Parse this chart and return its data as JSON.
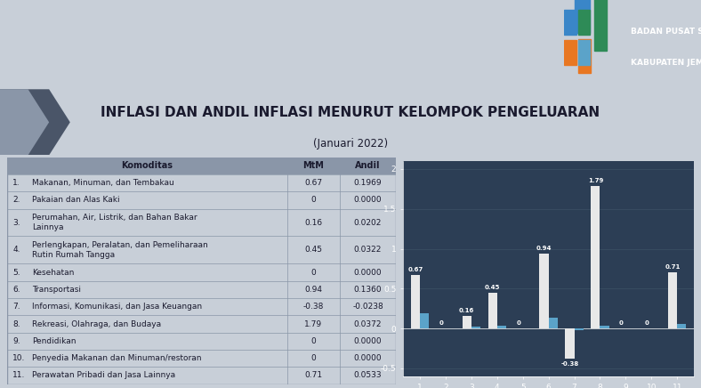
{
  "title": "INFLASI DAN ANDIL INFLASI MENURUT KELOMPOK PENGELUARAN",
  "subtitle": "(Januari 2022)",
  "rows": [
    {
      "no": "1.",
      "name": "Makanan, Minuman, dan Tembakau",
      "mtm": "0.67",
      "andil": "0.1969",
      "mtm_val": 0.67,
      "andil_val": 0.1969
    },
    {
      "no": "2.",
      "name": "Pakaian dan Alas Kaki",
      "mtm": "0",
      "andil": "0.0000",
      "mtm_val": 0,
      "andil_val": 0.0
    },
    {
      "no": "3.",
      "name": "Perumahan, Air, Listrik, dan Bahan Bakar\nLainnya",
      "mtm": "0.16",
      "andil": "0.0202",
      "mtm_val": 0.16,
      "andil_val": 0.0202
    },
    {
      "no": "4.",
      "name": "Perlengkapan, Peralatan, dan Pemeliharaan\nRutin Rumah Tangga",
      "mtm": "0.45",
      "andil": "0.0322",
      "mtm_val": 0.45,
      "andil_val": 0.0322
    },
    {
      "no": "5.",
      "name": "Kesehatan",
      "mtm": "0",
      "andil": "0.0000",
      "mtm_val": 0,
      "andil_val": 0.0
    },
    {
      "no": "6.",
      "name": "Transportasi",
      "mtm": "0.94",
      "andil": "0.1360",
      "mtm_val": 0.94,
      "andil_val": 0.136
    },
    {
      "no": "7.",
      "name": "Informasi, Komunikasi, dan Jasa Keuangan",
      "mtm": "-0.38",
      "andil": "-0.0238",
      "mtm_val": -0.38,
      "andil_val": -0.0238
    },
    {
      "no": "8.",
      "name": "Rekreasi, Olahraga, dan Budaya",
      "mtm": "1.79",
      "andil": "0.0372",
      "mtm_val": 1.79,
      "andil_val": 0.0372
    },
    {
      "no": "9.",
      "name": "Pendidikan",
      "mtm": "0",
      "andil": "0.0000",
      "mtm_val": 0,
      "andil_val": 0.0
    },
    {
      "no": "10.",
      "name": "Penyedia Makanan dan Minuman/restoran",
      "mtm": "0",
      "andil": "0.0000",
      "mtm_val": 0,
      "andil_val": 0.0
    },
    {
      "no": "11.",
      "name": "Perawatan Pribadi dan Jasa Lainnya",
      "mtm": "0.71",
      "andil": "0.0533",
      "mtm_val": 0.71,
      "andil_val": 0.0533
    }
  ],
  "bar_mtm": [
    0.67,
    0,
    0.16,
    0.45,
    0,
    0.94,
    -0.38,
    1.79,
    0,
    0,
    0.71
  ],
  "bar_andil": [
    0.1969,
    0.0,
    0.0202,
    0.0322,
    0.0,
    0.136,
    -0.0238,
    0.0372,
    0.0,
    0.0,
    0.0533
  ],
  "bar_labels_mtm": [
    "0.67",
    "0",
    "0.16",
    "0.45",
    "0",
    "0.94",
    "-0.38",
    "1.79",
    "0",
    "0",
    "0.71"
  ],
  "color_mtm": "#e8e8e8",
  "color_andil": "#5ba3c9",
  "chart_bg": "#2c3e55",
  "top_bar_bg": "#1e2d42",
  "content_bg": "#c8cfd8",
  "table_bg": "#c8cfd8",
  "table_header_bg": "#8a96a8",
  "table_border": "#8a96a8",
  "title_color": "#1a1a2e",
  "logo_text1": "BADAN PUSAT STATISTIK",
  "logo_text2": "KABUPATEN JEMBER"
}
